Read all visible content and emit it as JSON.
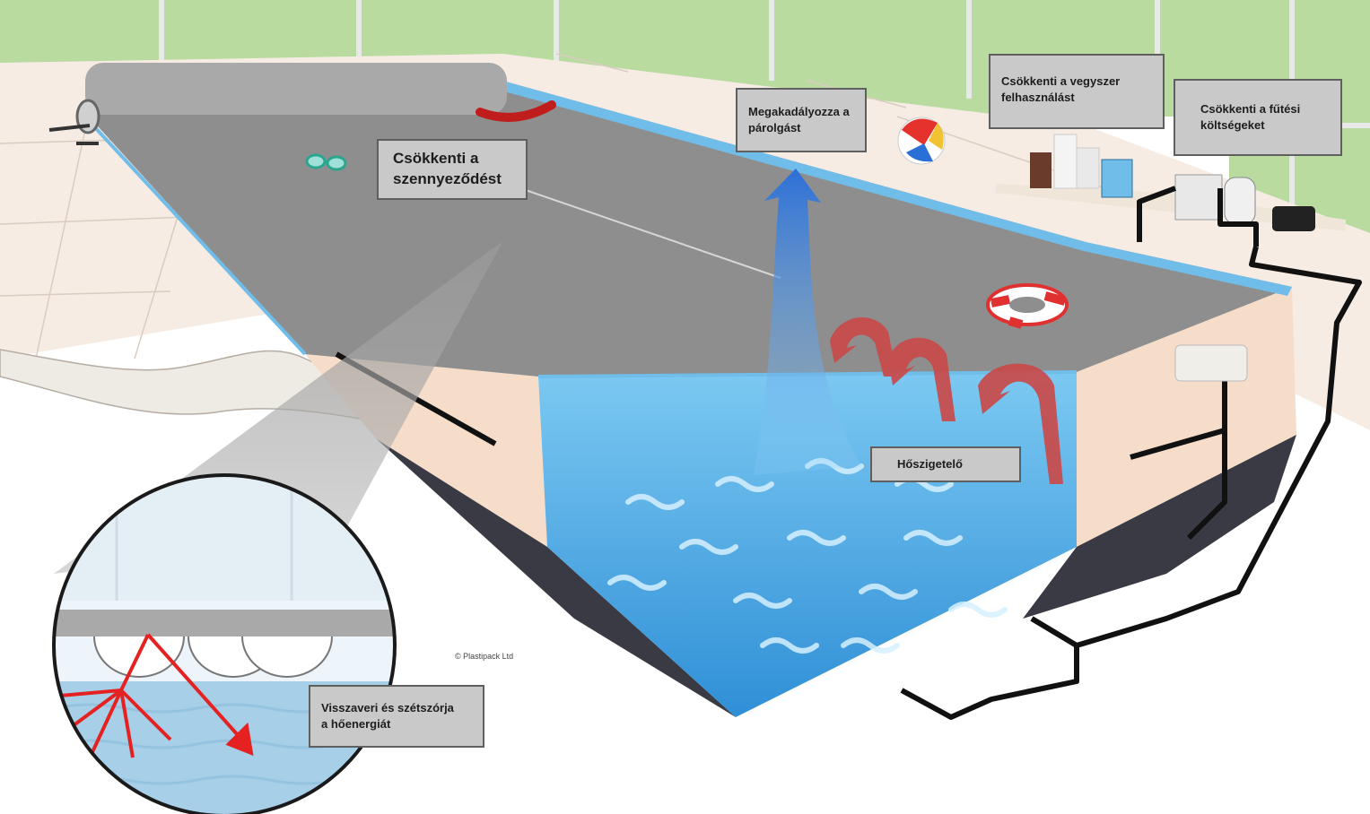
{
  "labels": {
    "pollution": "Csökkenti a\nszennyeződést",
    "evaporation": "Megakadályozza a\npárolgást",
    "chemicals": "Csökkenti a vegyszer\nfelhasználást",
    "heating": "Csökkenti a fűtési\nköltségeket",
    "insulation": "Hőszigetelő",
    "reflect": "Visszaveri és szétszórja\na hőenergiát"
  },
  "copyright": "© Plastipack Ltd",
  "colors": {
    "water": "#4fb0e8",
    "water_deep": "#2f8fd6",
    "cover": "#8e8e8e",
    "deck": "#f6ece4",
    "wall": "#f5ddc9",
    "window_green": "#b9dba0",
    "heat_arrow": "#c94a4a",
    "evap_arrow": "#2c6fd6",
    "reflect_ray": "#e52222",
    "label_bg": "#c9c9c9",
    "label_border": "#5f5f5f"
  }
}
